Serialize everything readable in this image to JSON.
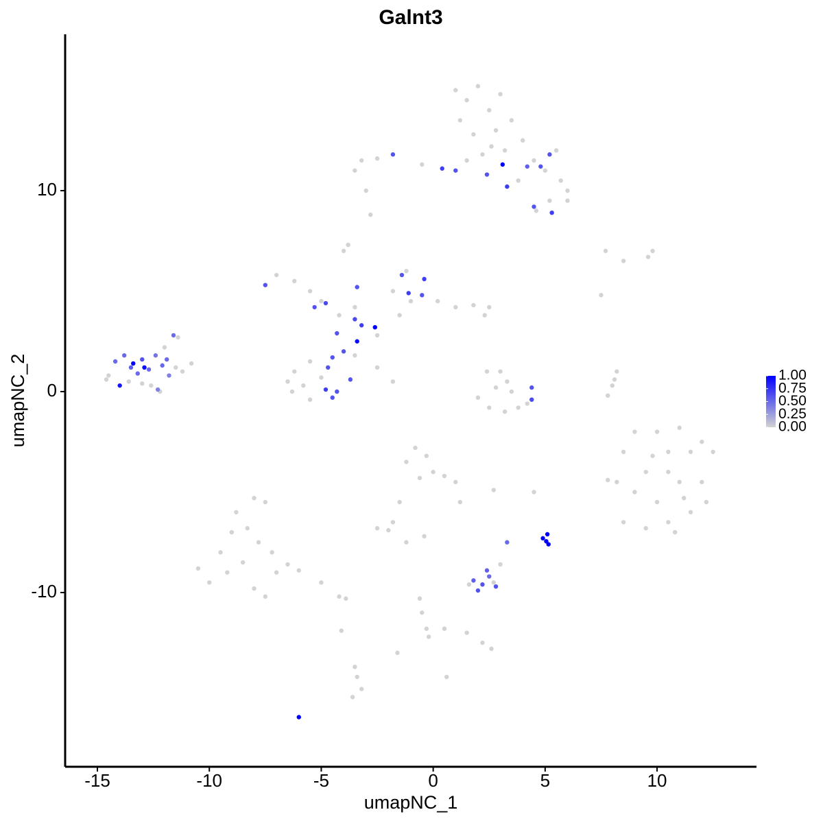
{
  "chart_data": {
    "type": "scatter",
    "title": "Galnt3",
    "x_label": "umapNC_1",
    "y_label": "umapNC_2",
    "xlim": [
      -16.44,
      14.44
    ],
    "ylim": [
      -18.67,
      17.78
    ],
    "xticks": [
      -15,
      -10,
      -5,
      0,
      5,
      10
    ],
    "yticks": [
      -10,
      0,
      10
    ],
    "color_low": "#d3d3d3",
    "color_high": "#0000ff",
    "color_lim": [
      0,
      1
    ],
    "color_ticks": [
      {
        "value": 1,
        "label": "1.00"
      },
      {
        "value": 0.75,
        "label": "0.75"
      },
      {
        "value": 0.5,
        "label": "0.50"
      },
      {
        "value": 0.25,
        "label": "0.25"
      },
      {
        "value": 0,
        "label": "0.00"
      }
    ],
    "x": [
      -14.5,
      -14.2,
      -13.8,
      -13.5,
      -13.2,
      -13.0,
      -12.7,
      -12.4,
      -12.1,
      -11.8,
      -11.5,
      -11.2,
      -10.8,
      -14.0,
      -13.4,
      -12.9,
      -13.6,
      -12.6,
      -12.3,
      -11.6,
      -11.4,
      -12.0,
      -14.6,
      -13.0,
      -12.2,
      -11.9,
      1.0,
      1.5,
      2.0,
      2.5,
      1.2,
      2.8,
      1.8,
      3.0,
      3.5,
      2.2,
      3.2,
      4.0,
      4.5,
      5.0,
      5.5,
      6.0,
      5.2,
      4.6,
      3.8,
      4.2,
      4.8,
      5.2,
      4.5,
      5.3,
      3.1,
      2.4,
      3.3,
      6.0,
      5.7,
      1.0,
      0.4,
      -0.5,
      -1.8,
      -2.5,
      -3.2,
      -3.5,
      -3.0,
      -2.8,
      1.5,
      2.6,
      -7.5,
      -7.0,
      -6.2,
      -5.5,
      -5.0,
      -5.3,
      -4.8,
      -4.2,
      -3.5,
      -3.8,
      -4.0,
      -3.4,
      -3.5,
      -3.2,
      -2.6,
      -3.4,
      -2.5,
      -1.5,
      -1.0,
      -1.8,
      -1.4,
      -1.2,
      -0.4,
      -1.1,
      -0.5,
      0.2,
      1.0,
      1.8,
      2.3,
      2.5,
      -4.3,
      -4.0,
      -4.5,
      -5.5,
      -6.2,
      -6.3,
      -5.5,
      -4.5,
      -4.3,
      -4.8,
      -5.0,
      -4.7,
      -3.7,
      -3.5,
      -2.5,
      -1.8,
      -6.5,
      -5.8,
      2.4,
      3.0,
      3.3,
      2.0,
      2.5,
      3.2,
      3.8,
      4.2,
      4.4,
      4.4,
      3.5,
      2.8,
      8.0,
      8.2,
      7.8,
      8.1,
      7.7,
      8.5,
      9.6,
      9.8,
      7.5,
      8.5,
      9.0,
      9.5,
      10.0,
      10.5,
      11.0,
      11.5,
      12.0,
      12.5,
      8.2,
      9.0,
      10.0,
      11.0,
      12.0,
      8.5,
      9.5,
      10.5,
      11.5,
      12.2,
      10.5,
      9.8,
      11.2,
      7.8,
      10.8,
      -10.5,
      -10.0,
      -9.5,
      -9.0,
      -8.8,
      -8.0,
      -7.5,
      -8.5,
      -8.0,
      -7.5,
      -7.0,
      -7.8,
      -7.2,
      -6.5,
      -6.0,
      -5.0,
      -4.2,
      -3.9,
      -9.2,
      -8.3,
      -1.2,
      -0.8,
      -0.3,
      0.0,
      0.5,
      1.0,
      1.2,
      -0.6,
      -1.5,
      -1.8,
      -2.5,
      -2.0,
      -1.2,
      2.7,
      -0.4,
      1.8,
      2.2,
      2.5,
      2.8,
      2.4,
      3.0,
      3.3,
      2.0,
      4.9,
      5.1,
      5.05,
      5.15,
      4.5,
      2.7,
      1.6,
      -0.6,
      -0.5,
      -0.3,
      -0.2,
      0.5,
      1.5,
      2.2,
      2.6,
      0.6,
      -3.5,
      -3.4,
      -3.2,
      -3.6,
      -4.1,
      -6.0,
      -1.6
    ],
    "y": [
      0.8,
      1.5,
      1.8,
      1.2,
      0.9,
      1.6,
      1.1,
      1.8,
      1.3,
      0.8,
      1.2,
      1.0,
      1.4,
      0.3,
      1.4,
      1.2,
      0.5,
      0.3,
      0.1,
      2.8,
      2.7,
      2.2,
      0.6,
      0.4,
      0.0,
      1.6,
      15.0,
      14.5,
      15.2,
      14.0,
      13.5,
      13.0,
      12.8,
      14.8,
      13.5,
      11.8,
      12.0,
      12.5,
      11.5,
      11.0,
      12.0,
      10.0,
      9.5,
      9.0,
      10.5,
      11.2,
      11.2,
      11.8,
      9.2,
      8.9,
      11.3,
      10.8,
      10.2,
      9.5,
      10.5,
      11.0,
      11.1,
      11.3,
      11.8,
      11.6,
      11.5,
      11.0,
      10.0,
      8.8,
      11.5,
      12.2,
      5.3,
      5.8,
      5.5,
      5.0,
      4.5,
      4.2,
      4.4,
      3.8,
      4.2,
      7.3,
      7.0,
      5.2,
      3.6,
      3.3,
      3.2,
      2.5,
      2.8,
      3.8,
      4.5,
      5.0,
      5.8,
      6.0,
      5.6,
      4.9,
      4.8,
      4.5,
      4.2,
      4.3,
      3.8,
      4.2,
      2.9,
      2.0,
      1.7,
      1.5,
      1.0,
      0.0,
      -0.4,
      -0.3,
      0.0,
      0.1,
      0.7,
      1.2,
      0.6,
      1.8,
      1.2,
      0.5,
      0.5,
      0.3,
      1.0,
      1.0,
      0.5,
      -0.3,
      -0.8,
      -1.0,
      -0.8,
      -0.6,
      0.2,
      -0.4,
      0.0,
      0.2,
      0.3,
      1.0,
      -0.2,
      0.6,
      7.0,
      6.5,
      6.7,
      7.0,
      4.8,
      -3.0,
      -2.0,
      -4.0,
      -2.0,
      -3.0,
      -1.8,
      -3.0,
      -2.5,
      -3.0,
      -4.5,
      -5.0,
      -5.5,
      -4.5,
      -4.5,
      -6.5,
      -6.8,
      -6.5,
      -6.0,
      -5.5,
      -4.0,
      -3.2,
      -5.3,
      -4.4,
      -7.0,
      -8.8,
      -9.5,
      -8.0,
      -7.0,
      -6.0,
      -5.3,
      -5.5,
      -8.5,
      -9.8,
      -10.2,
      -9.0,
      -7.5,
      -8.0,
      -8.6,
      -8.9,
      -9.5,
      -10.2,
      -10.3,
      -9.0,
      -6.8,
      -3.5,
      -2.8,
      -3.2,
      -4.0,
      -4.2,
      -4.5,
      -5.5,
      -4.3,
      -5.5,
      -6.5,
      -6.8,
      -6.9,
      -7.5,
      -4.9,
      -7.2,
      -9.4,
      -9.6,
      -9.2,
      -9.7,
      -8.9,
      -8.6,
      -7.5,
      -9.9,
      -7.3,
      -7.1,
      -7.45,
      -7.6,
      -5.0,
      -9.5,
      -9.6,
      -10.3,
      -11.0,
      -11.8,
      -12.2,
      -11.8,
      -12.0,
      -12.5,
      -12.8,
      -14.2,
      -13.7,
      -14.2,
      -14.8,
      -15.2,
      -11.9,
      -16.2,
      -13.0
    ],
    "values": [
      0,
      0.5,
      0.5,
      0.55,
      0.5,
      0.6,
      0.5,
      0.45,
      0.5,
      0.4,
      0,
      0,
      0,
      0.9,
      1.0,
      0.95,
      0,
      0,
      0.4,
      0.5,
      0,
      0,
      0,
      0,
      0,
      0.5,
      0,
      0,
      0,
      0,
      0,
      0,
      0,
      0,
      0,
      0,
      0,
      0,
      0,
      0,
      0,
      0,
      0,
      0,
      0,
      0.55,
      0.6,
      0.6,
      0.6,
      0.7,
      1.0,
      0.6,
      0.7,
      0,
      0,
      0.6,
      0.7,
      0,
      0.6,
      0,
      0,
      0,
      0,
      0,
      0,
      0,
      0.6,
      0,
      0,
      0,
      0,
      0.6,
      0.65,
      0,
      0,
      0,
      0,
      0.6,
      0.65,
      0.7,
      1.0,
      0.95,
      0,
      0,
      0,
      0,
      0.6,
      0,
      0.7,
      0.7,
      0.6,
      0,
      0,
      0,
      0,
      0,
      0.6,
      0.6,
      0.6,
      0,
      0,
      0,
      0,
      0.6,
      0.6,
      0.7,
      0,
      0.6,
      0.6,
      0,
      0,
      0,
      0,
      0,
      0,
      0,
      0,
      0,
      0,
      0,
      0,
      0,
      0.6,
      0.65,
      0,
      0,
      0,
      0,
      0,
      0,
      0,
      0,
      0,
      0,
      0,
      0,
      0,
      0,
      0,
      0,
      0,
      0,
      0,
      0,
      0,
      0,
      0,
      0,
      0,
      0,
      0,
      0,
      0,
      0,
      0,
      0,
      0,
      0,
      0,
      0,
      0,
      0,
      0,
      0,
      0,
      0,
      0,
      0,
      0,
      0,
      0,
      0,
      0,
      0,
      0,
      0,
      0,
      0,
      0,
      0,
      0,
      0,
      0,
      0,
      0,
      0,
      0,
      0,
      0,
      0,
      0,
      0,
      0,
      0,
      0.55,
      0.6,
      0.5,
      0.6,
      0.55,
      0,
      0.5,
      0.6,
      1.0,
      1.0,
      1.0,
      1.0,
      0,
      0,
      0,
      0,
      0,
      0,
      0,
      0,
      0,
      0,
      0,
      0,
      0,
      0,
      0,
      0,
      0,
      1.0,
      0
    ]
  }
}
